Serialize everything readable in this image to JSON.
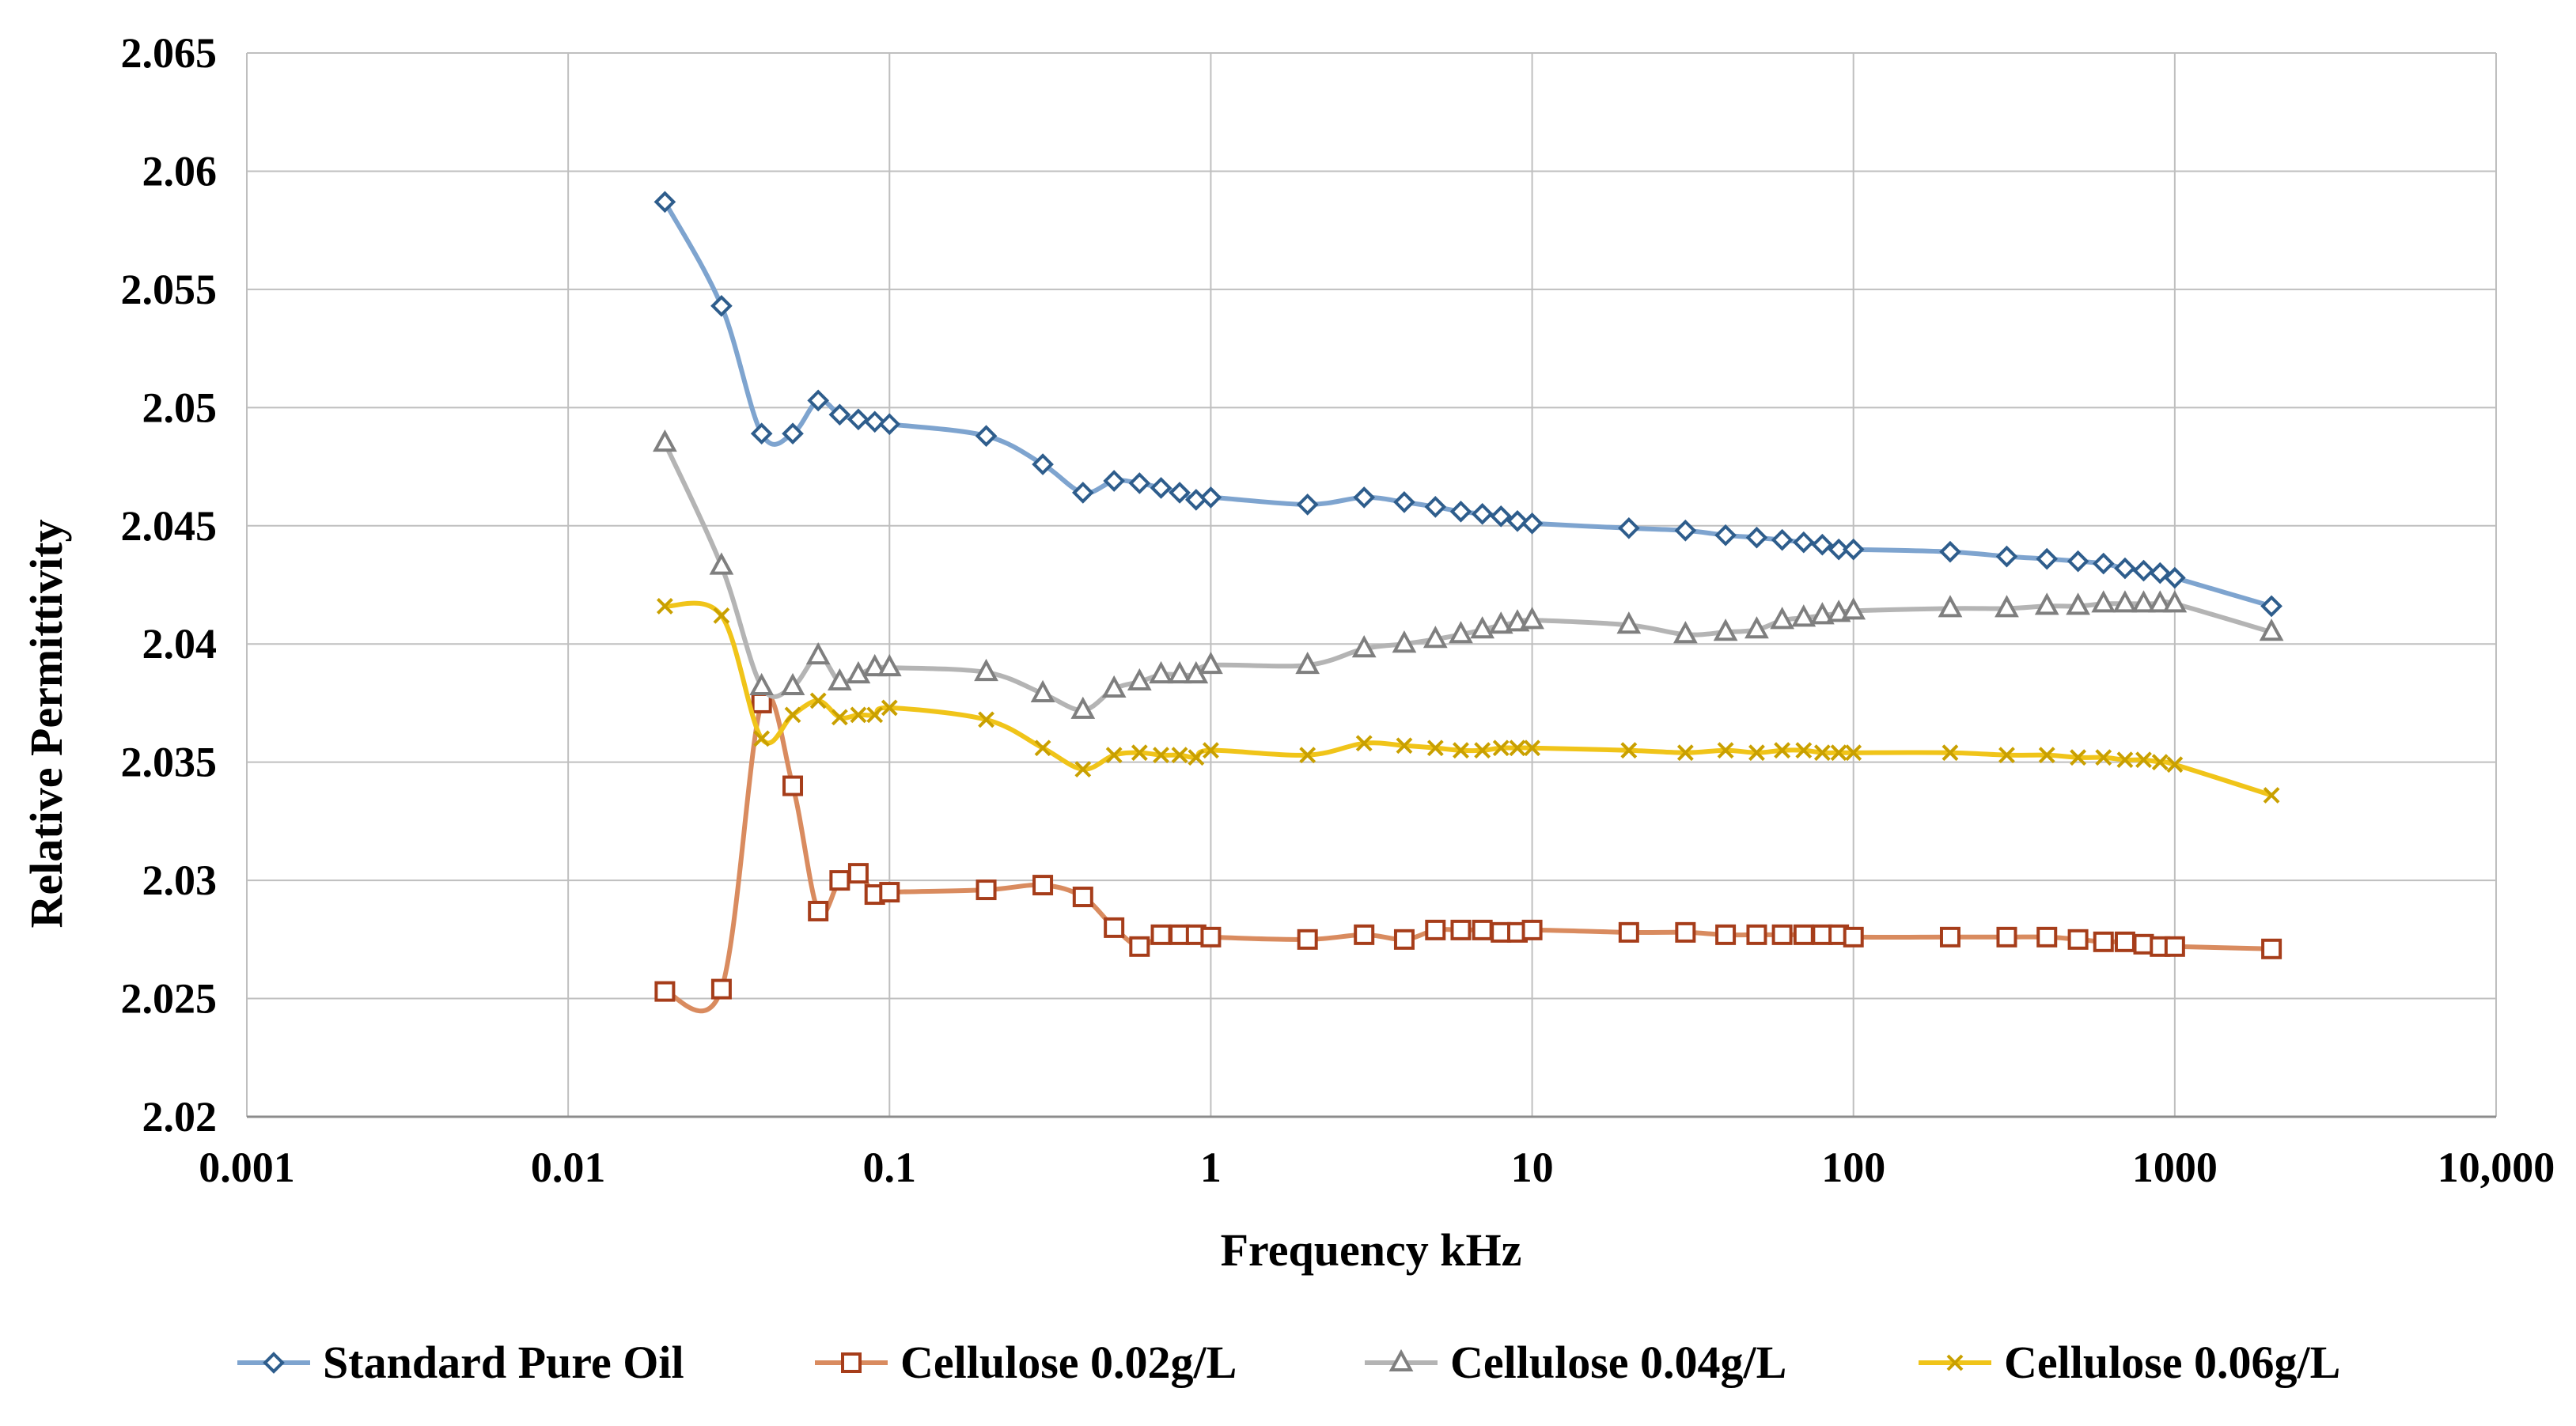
{
  "chart_data": {
    "type": "line",
    "title": "",
    "xlabel": "Frequency kHz",
    "ylabel": "Relative Permittivity",
    "xscale": "log",
    "xlim": [
      0.001,
      10000
    ],
    "ylim": [
      2.02,
      2.065
    ],
    "grid": true,
    "legend_position": "bottom",
    "x_tick_labels": [
      "0.001",
      "0.01",
      "0.1",
      "1",
      "10",
      "100",
      "1000",
      "10,000"
    ],
    "y_tick_labels": [
      "2.02",
      "2.025",
      "2.03",
      "2.035",
      "2.04",
      "2.045",
      "2.05",
      "2.055",
      "2.06",
      "2.065"
    ],
    "series": [
      {
        "name": "Standard Pure Oil",
        "color": "#2e5d8c",
        "line_color": "#7ea4cf",
        "marker": "diamond",
        "points": [
          [
            0.02,
            2.0587
          ],
          [
            0.03,
            2.0543
          ],
          [
            0.04,
            2.0489
          ],
          [
            0.05,
            2.0489
          ],
          [
            0.06,
            2.0503
          ],
          [
            0.07,
            2.0497
          ],
          [
            0.08,
            2.0495
          ],
          [
            0.09,
            2.0494
          ],
          [
            0.1,
            2.0493
          ],
          [
            0.2,
            2.0488
          ],
          [
            0.3,
            2.0476
          ],
          [
            0.4,
            2.0464
          ],
          [
            0.5,
            2.0469
          ],
          [
            0.6,
            2.0468
          ],
          [
            0.7,
            2.0466
          ],
          [
            0.8,
            2.0464
          ],
          [
            0.9,
            2.0461
          ],
          [
            1,
            2.0462
          ],
          [
            2,
            2.0459
          ],
          [
            3,
            2.0462
          ],
          [
            4,
            2.046
          ],
          [
            5,
            2.0458
          ],
          [
            6,
            2.0456
          ],
          [
            7,
            2.0455
          ],
          [
            8,
            2.0454
          ],
          [
            9,
            2.0452
          ],
          [
            10,
            2.0451
          ],
          [
            20,
            2.0449
          ],
          [
            30,
            2.0448
          ],
          [
            40,
            2.0446
          ],
          [
            50,
            2.0445
          ],
          [
            60,
            2.0444
          ],
          [
            70,
            2.0443
          ],
          [
            80,
            2.0442
          ],
          [
            90,
            2.044
          ],
          [
            100,
            2.044
          ],
          [
            200,
            2.0439
          ],
          [
            300,
            2.0437
          ],
          [
            400,
            2.0436
          ],
          [
            500,
            2.0435
          ],
          [
            600,
            2.0434
          ],
          [
            700,
            2.0432
          ],
          [
            800,
            2.0431
          ],
          [
            900,
            2.043
          ],
          [
            1000,
            2.0428
          ],
          [
            2000,
            2.0416
          ]
        ]
      },
      {
        "name": "Cellulose 0.02g/L",
        "color": "#a63d1a",
        "line_color": "#d98b5f",
        "marker": "square",
        "points": [
          [
            0.02,
            2.0253
          ],
          [
            0.03,
            2.0254
          ],
          [
            0.04,
            2.0375
          ],
          [
            0.05,
            2.034
          ],
          [
            0.06,
            2.0287
          ],
          [
            0.07,
            2.03
          ],
          [
            0.08,
            2.0303
          ],
          [
            0.09,
            2.0294
          ],
          [
            0.1,
            2.0295
          ],
          [
            0.2,
            2.0296
          ],
          [
            0.3,
            2.0298
          ],
          [
            0.4,
            2.0293
          ],
          [
            0.5,
            2.028
          ],
          [
            0.6,
            2.0272
          ],
          [
            0.7,
            2.0277
          ],
          [
            0.8,
            2.0277
          ],
          [
            0.9,
            2.0277
          ],
          [
            1,
            2.0276
          ],
          [
            2,
            2.0275
          ],
          [
            3,
            2.0277
          ],
          [
            4,
            2.0275
          ],
          [
            5,
            2.0279
          ],
          [
            6,
            2.0279
          ],
          [
            7,
            2.0279
          ],
          [
            8,
            2.0278
          ],
          [
            9,
            2.0278
          ],
          [
            10,
            2.0279
          ],
          [
            20,
            2.0278
          ],
          [
            30,
            2.0278
          ],
          [
            40,
            2.0277
          ],
          [
            50,
            2.0277
          ],
          [
            60,
            2.0277
          ],
          [
            70,
            2.0277
          ],
          [
            80,
            2.0277
          ],
          [
            90,
            2.0277
          ],
          [
            100,
            2.0276
          ],
          [
            200,
            2.0276
          ],
          [
            300,
            2.0276
          ],
          [
            400,
            2.0276
          ],
          [
            500,
            2.0275
          ],
          [
            600,
            2.0274
          ],
          [
            700,
            2.0274
          ],
          [
            800,
            2.0273
          ],
          [
            900,
            2.0272
          ],
          [
            1000,
            2.0272
          ],
          [
            2000,
            2.0271
          ]
        ]
      },
      {
        "name": "Cellulose 0.04g/L",
        "color": "#7f7f7f",
        "line_color": "#b4b4b4",
        "marker": "triangle",
        "points": [
          [
            0.02,
            2.0485
          ],
          [
            0.03,
            2.0433
          ],
          [
            0.04,
            2.0382
          ],
          [
            0.05,
            2.0382
          ],
          [
            0.06,
            2.0395
          ],
          [
            0.07,
            2.0384
          ],
          [
            0.08,
            2.0387
          ],
          [
            0.09,
            2.039
          ],
          [
            0.1,
            2.039
          ],
          [
            0.2,
            2.0388
          ],
          [
            0.3,
            2.0379
          ],
          [
            0.4,
            2.0372
          ],
          [
            0.5,
            2.0381
          ],
          [
            0.6,
            2.0384
          ],
          [
            0.7,
            2.0387
          ],
          [
            0.8,
            2.0387
          ],
          [
            0.9,
            2.0387
          ],
          [
            1,
            2.0391
          ],
          [
            2,
            2.0391
          ],
          [
            3,
            2.0398
          ],
          [
            4,
            2.04
          ],
          [
            5,
            2.0402
          ],
          [
            6,
            2.0404
          ],
          [
            7,
            2.0406
          ],
          [
            8,
            2.0408
          ],
          [
            9,
            2.0409
          ],
          [
            10,
            2.041
          ],
          [
            20,
            2.0408
          ],
          [
            30,
            2.0404
          ],
          [
            40,
            2.0405
          ],
          [
            50,
            2.0406
          ],
          [
            60,
            2.041
          ],
          [
            70,
            2.0411
          ],
          [
            80,
            2.0412
          ],
          [
            90,
            2.0413
          ],
          [
            100,
            2.0414
          ],
          [
            200,
            2.0415
          ],
          [
            300,
            2.0415
          ],
          [
            400,
            2.0416
          ],
          [
            500,
            2.0416
          ],
          [
            600,
            2.0417
          ],
          [
            700,
            2.0417
          ],
          [
            800,
            2.0417
          ],
          [
            900,
            2.0417
          ],
          [
            1000,
            2.0417
          ],
          [
            2000,
            2.0405
          ]
        ]
      },
      {
        "name": "Cellulose 0.06g/L",
        "color": "#c9a000",
        "line_color": "#f0c419",
        "marker": "x",
        "points": [
          [
            0.02,
            2.0416
          ],
          [
            0.03,
            2.0412
          ],
          [
            0.04,
            2.036
          ],
          [
            0.05,
            2.037
          ],
          [
            0.06,
            2.0376
          ],
          [
            0.07,
            2.0369
          ],
          [
            0.08,
            2.037
          ],
          [
            0.09,
            2.037
          ],
          [
            0.1,
            2.0373
          ],
          [
            0.2,
            2.0368
          ],
          [
            0.3,
            2.0356
          ],
          [
            0.4,
            2.0347
          ],
          [
            0.5,
            2.0353
          ],
          [
            0.6,
            2.0354
          ],
          [
            0.7,
            2.0353
          ],
          [
            0.8,
            2.0353
          ],
          [
            0.9,
            2.0352
          ],
          [
            1,
            2.0355
          ],
          [
            2,
            2.0353
          ],
          [
            3,
            2.0358
          ],
          [
            4,
            2.0357
          ],
          [
            5,
            2.0356
          ],
          [
            6,
            2.0355
          ],
          [
            7,
            2.0355
          ],
          [
            8,
            2.0356
          ],
          [
            9,
            2.0356
          ],
          [
            10,
            2.0356
          ],
          [
            20,
            2.0355
          ],
          [
            30,
            2.0354
          ],
          [
            40,
            2.0355
          ],
          [
            50,
            2.0354
          ],
          [
            60,
            2.0355
          ],
          [
            70,
            2.0355
          ],
          [
            80,
            2.0354
          ],
          [
            90,
            2.0354
          ],
          [
            100,
            2.0354
          ],
          [
            200,
            2.0354
          ],
          [
            300,
            2.0353
          ],
          [
            400,
            2.0353
          ],
          [
            500,
            2.0352
          ],
          [
            600,
            2.0352
          ],
          [
            700,
            2.0351
          ],
          [
            800,
            2.0351
          ],
          [
            900,
            2.035
          ],
          [
            1000,
            2.0349
          ],
          [
            2000,
            2.0336
          ]
        ]
      }
    ]
  }
}
